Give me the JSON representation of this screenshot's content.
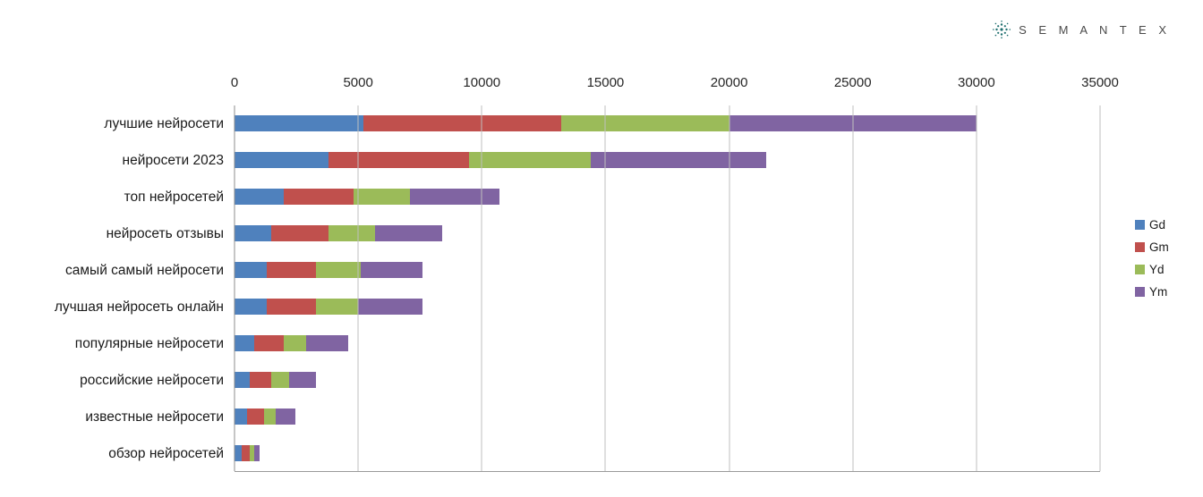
{
  "brand": {
    "name": "S E M A N T E X"
  },
  "chart_data": {
    "type": "bar",
    "stacked": true,
    "orientation": "horizontal",
    "title": "",
    "xlabel": "",
    "ylabel": "",
    "xlim": [
      0,
      35000
    ],
    "xticks": [
      0,
      5000,
      10000,
      15000,
      20000,
      25000,
      30000,
      35000
    ],
    "grid": true,
    "legend_position": "right",
    "categories": [
      "лучшие нейросети",
      "нейросети 2023",
      "топ нейросетей",
      "нейросеть отзывы",
      "самый самый нейросети",
      "лучшая нейросеть онлайн",
      "популярные нейросети",
      "российские нейросети",
      "известные нейросети",
      "обзор нейросетей"
    ],
    "series": [
      {
        "name": "Gd",
        "color": "#4F81BD",
        "values": [
          5200,
          3800,
          2000,
          1500,
          1300,
          1300,
          800,
          600,
          500,
          300
        ]
      },
      {
        "name": "Gm",
        "color": "#C0504D",
        "values": [
          8000,
          5700,
          2800,
          2300,
          2000,
          2000,
          1200,
          900,
          700,
          300
        ]
      },
      {
        "name": "Yd",
        "color": "#9BBB59",
        "values": [
          6800,
          4900,
          2300,
          1900,
          1800,
          1700,
          900,
          700,
          450,
          200
        ]
      },
      {
        "name": "Ym",
        "color": "#8064A2",
        "values": [
          10000,
          7100,
          3600,
          2700,
          2500,
          2600,
          1700,
          1100,
          800,
          200
        ]
      }
    ]
  }
}
